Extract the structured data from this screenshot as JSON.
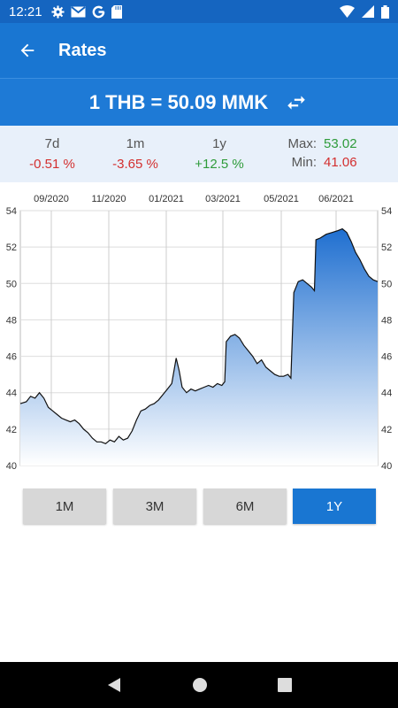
{
  "status": {
    "time": "12:21",
    "icons_left": [
      "gear-icon",
      "gmail-icon",
      "google-icon",
      "sdcard-icon"
    ],
    "icons_right": [
      "wifi-icon",
      "signal-icon",
      "battery-icon"
    ]
  },
  "app_bar": {
    "title": "Rates"
  },
  "rate": {
    "text": "1 THB = 50.09 MMK"
  },
  "stats": {
    "periods": [
      {
        "label": "7d",
        "value": "-0.51 %",
        "sign": "neg"
      },
      {
        "label": "1m",
        "value": "-3.65 %",
        "sign": "neg"
      },
      {
        "label": "1y",
        "value": "+12.5 %",
        "sign": "pos"
      }
    ],
    "max_label": "Max:",
    "max_value": "53.02",
    "min_label": "Min:",
    "min_value": "41.06"
  },
  "chart_data": {
    "type": "area",
    "x_tick_labels": [
      "09/2020",
      "11/2020",
      "01/2021",
      "03/2021",
      "05/2021",
      "06/2021"
    ],
    "y_ticks": [
      40,
      42,
      44,
      46,
      48,
      50,
      52,
      54
    ],
    "ylim": [
      40,
      54
    ],
    "points": [
      [
        0,
        43.4
      ],
      [
        4,
        43.5
      ],
      [
        7,
        43.8
      ],
      [
        10,
        43.7
      ],
      [
        13,
        44.0
      ],
      [
        16,
        43.7
      ],
      [
        19,
        43.2
      ],
      [
        22,
        43.0
      ],
      [
        25,
        42.8
      ],
      [
        28,
        42.6
      ],
      [
        31,
        42.5
      ],
      [
        34,
        42.4
      ],
      [
        37,
        42.5
      ],
      [
        40,
        42.3
      ],
      [
        43,
        42.0
      ],
      [
        46,
        41.8
      ],
      [
        49,
        41.5
      ],
      [
        52,
        41.3
      ],
      [
        55,
        41.3
      ],
      [
        58,
        41.2
      ],
      [
        61,
        41.4
      ],
      [
        64,
        41.3
      ],
      [
        67,
        41.6
      ],
      [
        70,
        41.4
      ],
      [
        73,
        41.5
      ],
      [
        76,
        41.9
      ],
      [
        79,
        42.5
      ],
      [
        82,
        43.0
      ],
      [
        85,
        43.1
      ],
      [
        88,
        43.3
      ],
      [
        91,
        43.4
      ],
      [
        94,
        43.6
      ],
      [
        97,
        43.9
      ],
      [
        100,
        44.2
      ],
      [
        103,
        44.5
      ],
      [
        106,
        45.9
      ],
      [
        108,
        45.2
      ],
      [
        110,
        44.3
      ],
      [
        113,
        44.0
      ],
      [
        116,
        44.2
      ],
      [
        119,
        44.1
      ],
      [
        122,
        44.2
      ],
      [
        125,
        44.3
      ],
      [
        128,
        44.4
      ],
      [
        131,
        44.3
      ],
      [
        134,
        44.5
      ],
      [
        137,
        44.4
      ],
      [
        139,
        44.6
      ],
      [
        140,
        46.8
      ],
      [
        143,
        47.1
      ],
      [
        146,
        47.2
      ],
      [
        149,
        47.0
      ],
      [
        152,
        46.6
      ],
      [
        155,
        46.3
      ],
      [
        158,
        46.0
      ],
      [
        161,
        45.6
      ],
      [
        164,
        45.8
      ],
      [
        167,
        45.4
      ],
      [
        170,
        45.2
      ],
      [
        173,
        45.0
      ],
      [
        176,
        44.9
      ],
      [
        179,
        44.9
      ],
      [
        182,
        45.0
      ],
      [
        184,
        44.8
      ],
      [
        186,
        49.5
      ],
      [
        189,
        50.1
      ],
      [
        192,
        50.2
      ],
      [
        195,
        50.0
      ],
      [
        198,
        49.8
      ],
      [
        200,
        49.6
      ],
      [
        201,
        52.4
      ],
      [
        204,
        52.5
      ],
      [
        208,
        52.7
      ],
      [
        212,
        52.8
      ],
      [
        216,
        52.9
      ],
      [
        219,
        53.0
      ],
      [
        222,
        52.8
      ],
      [
        225,
        52.3
      ],
      [
        228,
        51.7
      ],
      [
        231,
        51.3
      ],
      [
        234,
        50.8
      ],
      [
        237,
        50.4
      ],
      [
        240,
        50.2
      ],
      [
        243,
        50.1
      ]
    ]
  },
  "ranges": [
    {
      "label": "1M",
      "active": false
    },
    {
      "label": "3M",
      "active": false
    },
    {
      "label": "6M",
      "active": false
    },
    {
      "label": "1Y",
      "active": true
    }
  ]
}
